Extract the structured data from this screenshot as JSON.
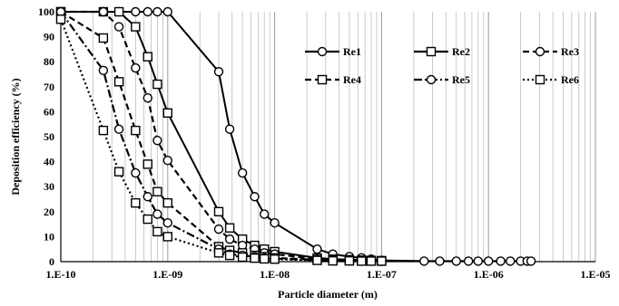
{
  "chart_data": {
    "type": "line",
    "x_scale": "log",
    "xlabel": "Particle diameter (m)",
    "ylabel": "Deposition efficiency (%)",
    "xlim": [
      1e-10,
      1e-05
    ],
    "ylim": [
      0,
      100
    ],
    "x_tick_values": [
      1e-10,
      1e-09,
      1e-08,
      1e-07,
      1e-06,
      1e-05
    ],
    "x_tick_labels": [
      "1.E-10",
      "1.E-09",
      "1.E-08",
      "1.E-07",
      "1.E-06",
      "1.E-05"
    ],
    "y_ticks": [
      0,
      10,
      20,
      30,
      40,
      50,
      60,
      70,
      80,
      90,
      100
    ],
    "grid": "vertical minor log gridlines",
    "legend_position": "top-right",
    "series": [
      {
        "name": "Re1",
        "marker": "circle",
        "line_style": "solid",
        "x": [
          1e-10,
          2.5e-10,
          3.5e-10,
          5e-10,
          6.5e-10,
          8e-10,
          1e-09,
          3e-09,
          3.8e-09,
          5e-09,
          6.5e-09,
          8e-09,
          1e-08,
          2.5e-08,
          3.5e-08,
          5e-08,
          6.5e-08,
          8e-08,
          1e-07,
          2.5e-07,
          3.5e-07,
          5e-07,
          6.5e-07,
          8e-07,
          1e-06,
          1.3e-06,
          1.6e-06,
          2e-06,
          2.3e-06,
          2.5e-06
        ],
        "y": [
          100,
          100,
          100,
          100,
          100,
          100,
          100,
          76,
          53,
          35.5,
          26,
          19,
          15.5,
          5,
          3,
          2,
          1.5,
          1,
          0.5,
          0.2,
          0.2,
          0.2,
          0.2,
          0.2,
          0.2,
          0.2,
          0.2,
          0.2,
          0.2,
          0.2
        ]
      },
      {
        "name": "Re2",
        "marker": "square",
        "line_style": "solid",
        "x": [
          1e-10,
          2.5e-10,
          3.5e-10,
          5e-10,
          6.5e-10,
          8e-10,
          1e-09,
          3e-09,
          3.8e-09,
          5e-09,
          6.5e-09,
          8e-09,
          1e-08,
          2.5e-08,
          3.5e-08,
          5e-08,
          6.5e-08,
          8e-08,
          1e-07
        ],
        "y": [
          100,
          100,
          100,
          94,
          82,
          71,
          59.5,
          20,
          13.5,
          9,
          6.5,
          5,
          4,
          1.5,
          1,
          0.8,
          0.6,
          0.5,
          0.4
        ]
      },
      {
        "name": "Re3",
        "marker": "circle",
        "line_style": "dashed",
        "x": [
          1e-10,
          2.5e-10,
          3.5e-10,
          5e-10,
          6.5e-10,
          8e-10,
          1e-09,
          3e-09,
          3.8e-09,
          5e-09,
          6.5e-09,
          8e-09,
          1e-08,
          2.5e-08,
          3.5e-08,
          5e-08,
          6.5e-08,
          8e-08,
          1e-07
        ],
        "y": [
          100,
          100,
          94,
          77.5,
          65.5,
          48.5,
          40.5,
          13,
          9,
          6.5,
          5,
          3.5,
          3,
          1,
          0.8,
          0.5,
          0.4,
          0.3,
          0.2
        ]
      },
      {
        "name": "Re4",
        "marker": "square",
        "line_style": "dashed",
        "x": [
          1e-10,
          2.5e-10,
          3.5e-10,
          5e-10,
          6.5e-10,
          8e-10,
          1e-09,
          3e-09,
          3.8e-09,
          5e-09,
          6.5e-09,
          8e-09,
          1e-08,
          2.5e-08,
          3.5e-08,
          5e-08,
          6.5e-08,
          8e-08,
          1e-07
        ],
        "y": [
          100,
          89.5,
          72,
          52.5,
          39,
          28,
          23.5,
          6,
          4.5,
          3.5,
          2.5,
          2,
          1.5,
          0.8,
          0.5,
          0.4,
          0.3,
          0.3,
          0.2
        ]
      },
      {
        "name": "Re5",
        "marker": "circle",
        "line_style": "dash-dot",
        "x": [
          1e-10,
          2.5e-10,
          3.5e-10,
          5e-10,
          6.5e-10,
          8e-10,
          1e-09,
          3e-09,
          3.8e-09,
          5e-09,
          6.5e-09,
          8e-09,
          1e-08,
          2.5e-08,
          3.5e-08,
          5e-08,
          6.5e-08,
          8e-08,
          1e-07
        ],
        "y": [
          100,
          76.5,
          53,
          35.5,
          26,
          19,
          15.5,
          5,
          3,
          2.5,
          2,
          1.5,
          1.2,
          0.6,
          0.4,
          0.3,
          0.2,
          0.2,
          0.2
        ]
      },
      {
        "name": "Re6",
        "marker": "square",
        "line_style": "dotted",
        "x": [
          1e-10,
          2.5e-10,
          3.5e-10,
          5e-10,
          6.5e-10,
          8e-10,
          1e-09,
          3e-09,
          3.8e-09,
          5e-09,
          6.5e-09,
          8e-09,
          1e-08,
          2.5e-08,
          3.5e-08,
          5e-08,
          6.5e-08,
          8e-08,
          1e-07
        ],
        "y": [
          97,
          52.5,
          36,
          23.5,
          17,
          12,
          10,
          3.5,
          2.5,
          1.8,
          1.4,
          1.1,
          1,
          0.5,
          0.3,
          0.3,
          0.2,
          0.2,
          0.2
        ]
      }
    ]
  }
}
